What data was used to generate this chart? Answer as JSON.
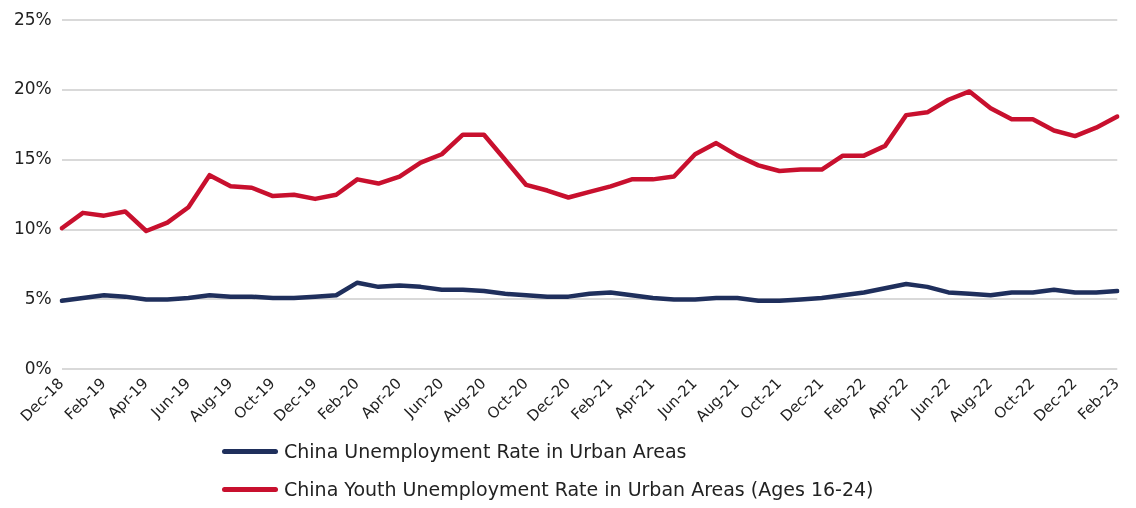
{
  "chart_data": {
    "type": "line",
    "categories": [
      "Dec-18",
      null,
      "Feb-19",
      null,
      "Apr-19",
      null,
      "Jun-19",
      null,
      "Aug-19",
      null,
      "Oct-19",
      null,
      "Dec-19",
      null,
      "Feb-20",
      null,
      "Apr-20",
      null,
      "Jun-20",
      null,
      "Aug-20",
      null,
      "Oct-20",
      null,
      "Dec-20",
      null,
      "Feb-21",
      null,
      "Apr-21",
      null,
      "Jun-21",
      null,
      "Aug-21",
      null,
      "Oct-21",
      null,
      "Dec-21",
      null,
      "Feb-22",
      null,
      "Apr-22",
      null,
      "Jun-22",
      null,
      "Aug-22",
      null,
      "Oct-22",
      null,
      "Dec-22",
      null,
      "Feb-23"
    ],
    "series": [
      {
        "name": "China Unemployment Rate in Urban Areas",
        "color": "#1f2f5c",
        "values": [
          4.9,
          5.1,
          5.3,
          5.2,
          5.0,
          5.0,
          5.1,
          5.3,
          5.2,
          5.2,
          5.1,
          5.1,
          5.2,
          5.3,
          6.2,
          5.9,
          6.0,
          5.9,
          5.7,
          5.7,
          5.6,
          5.4,
          5.3,
          5.2,
          5.2,
          5.4,
          5.5,
          5.3,
          5.1,
          5.0,
          5.0,
          5.1,
          5.1,
          4.9,
          4.9,
          5.0,
          5.1,
          5.3,
          5.5,
          5.8,
          6.1,
          5.9,
          5.5,
          5.4,
          5.3,
          5.5,
          5.5,
          5.7,
          5.5,
          5.5,
          5.6
        ]
      },
      {
        "name": "China Youth Unemployment Rate in Urban Areas (Ages 16-24)",
        "color": "#c8102e",
        "values": [
          10.1,
          11.2,
          11.0,
          11.3,
          9.9,
          10.5,
          11.6,
          13.9,
          13.1,
          13.0,
          12.4,
          12.5,
          12.2,
          12.5,
          13.6,
          13.3,
          13.8,
          14.8,
          15.4,
          16.8,
          16.8,
          15.0,
          13.2,
          12.8,
          12.3,
          12.7,
          13.1,
          13.6,
          13.6,
          13.8,
          15.4,
          16.2,
          15.3,
          14.6,
          14.2,
          14.3,
          14.3,
          15.3,
          15.3,
          16.0,
          18.2,
          18.4,
          19.3,
          19.9,
          18.7,
          17.9,
          17.9,
          17.1,
          16.7,
          17.3,
          18.1
        ]
      }
    ],
    "ylim": [
      0,
      25
    ],
    "yticks": [
      {
        "value": 0,
        "label": "0%"
      },
      {
        "value": 5,
        "label": "5%"
      },
      {
        "value": 10,
        "label": "10%"
      },
      {
        "value": 15,
        "label": "15%"
      },
      {
        "value": 20,
        "label": "20%"
      },
      {
        "value": 25,
        "label": "25%"
      }
    ],
    "grid": "y",
    "legend": "bottom",
    "marker": "none",
    "line_style": "solid"
  }
}
